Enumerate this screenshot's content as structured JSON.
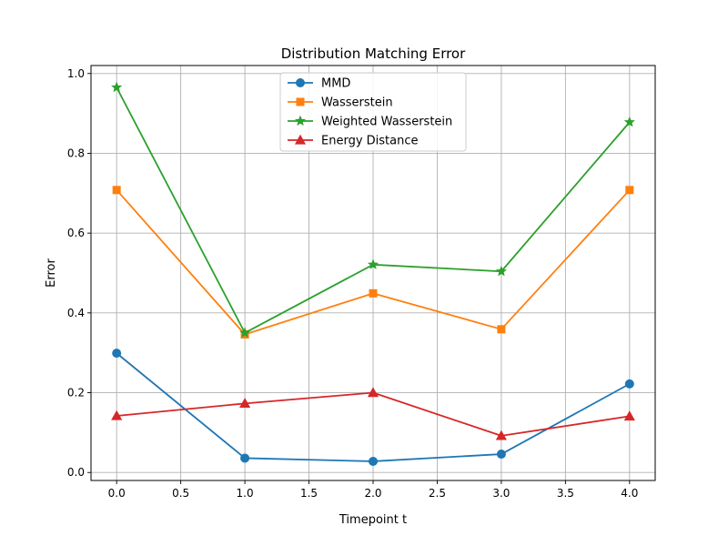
{
  "chart_data": {
    "type": "line",
    "title": "Distribution Matching Error",
    "xlabel": "Timepoint t",
    "ylabel": "Error",
    "x": [
      0,
      1,
      2,
      3,
      4
    ],
    "xlim": [
      -0.2,
      4.2
    ],
    "ylim": [
      -0.02,
      1.02
    ],
    "xticks": [
      0.0,
      0.5,
      1.0,
      1.5,
      2.0,
      2.5,
      3.0,
      3.5,
      4.0
    ],
    "xtick_labels": [
      "0.0",
      "0.5",
      "1.0",
      "1.5",
      "2.0",
      "2.5",
      "3.0",
      "3.5",
      "4.0"
    ],
    "yticks": [
      0.0,
      0.2,
      0.4,
      0.6,
      0.8,
      1.0
    ],
    "ytick_labels": [
      "0.0",
      "0.2",
      "0.4",
      "0.6",
      "0.8",
      "1.0"
    ],
    "grid": true,
    "legend_position": "upper center",
    "series": [
      {
        "name": "MMD",
        "color": "#1f77b4",
        "marker": "circle",
        "values": [
          0.299,
          0.036,
          0.028,
          0.046,
          0.222
        ]
      },
      {
        "name": "Wasserstein",
        "color": "#ff7f0e",
        "marker": "square",
        "values": [
          0.708,
          0.346,
          0.449,
          0.359,
          0.708
        ]
      },
      {
        "name": "Weighted Wasserstein",
        "color": "#2ca02c",
        "marker": "star",
        "values": [
          0.965,
          0.35,
          0.521,
          0.504,
          0.878
        ]
      },
      {
        "name": "Energy Distance",
        "color": "#d62728",
        "marker": "triangle",
        "values": [
          0.142,
          0.173,
          0.2,
          0.092,
          0.141
        ]
      }
    ]
  }
}
